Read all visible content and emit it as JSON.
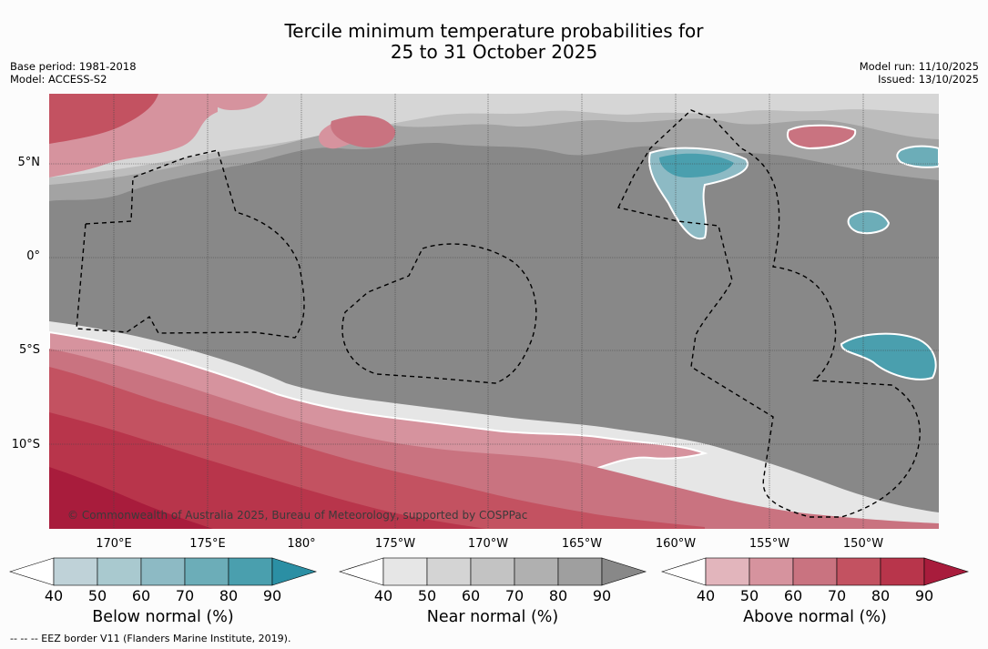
{
  "title": {
    "line1": "Tercile minimum temperature probabilities for",
    "line2": "25 to 31 October 2025"
  },
  "meta": {
    "base_period": "Base period: 1981-2018",
    "model": "Model: ACCESS-S2",
    "model_run": "Model run: 11/10/2025",
    "issued": "Issued: 13/10/2025"
  },
  "map": {
    "lat_labels": [
      "5°N",
      "0°",
      "5°S",
      "10°S"
    ],
    "lon_labels": [
      "170°E",
      "175°E",
      "180°",
      "175°W",
      "170°W",
      "165°W",
      "160°W",
      "155°W",
      "150°W"
    ],
    "copyright": "© Commonwealth of Australia 2025, Bureau of Meteorology, supported by COSPPac",
    "colors": {
      "ocean_base": "#888888",
      "near_normal": [
        "#e6e6e6",
        "#d4d4d4",
        "#c3c3c3",
        "#b0b0b0",
        "#9f9f9f",
        "#888888"
      ],
      "above_normal": [
        "#e2b5bc",
        "#d6939e",
        "#c97380",
        "#c35261",
        "#b8354b",
        "#a81c3c"
      ],
      "below_normal": [
        "#bfd2d8",
        "#a9c9cf",
        "#8dbac4",
        "#6cadb8",
        "#4a9fae",
        "#2b8fa4"
      ]
    }
  },
  "colorbars": [
    {
      "label": "Below normal (%)",
      "ticks": [
        "40",
        "50",
        "60",
        "70",
        "80",
        "90"
      ]
    },
    {
      "label": "Near normal (%)",
      "ticks": [
        "40",
        "50",
        "60",
        "70",
        "80",
        "90"
      ]
    },
    {
      "label": "Above normal (%)",
      "ticks": [
        "40",
        "50",
        "60",
        "70",
        "80",
        "90"
      ]
    }
  ],
  "footnote": "--  --  -- EEZ border V11 (Flanders Marine Institute, 2019)."
}
